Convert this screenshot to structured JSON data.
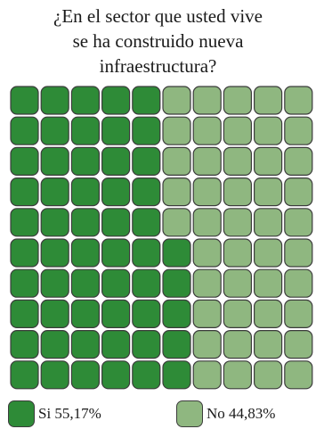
{
  "chart_data": {
    "type": "waffle",
    "title_lines": [
      "¿En el sector que usted vive",
      "se ha construido nueva",
      "infraestructura?"
    ],
    "grid": {
      "rows": 10,
      "cols": 10
    },
    "series": [
      {
        "name": "Si",
        "label": "Si 55,17%",
        "value": 55.17,
        "cells": 55,
        "color": "#2e8b37"
      },
      {
        "name": "No",
        "label": "No 44,83%",
        "value": 44.83,
        "cells": 45,
        "color": "#8fb780"
      }
    ],
    "fill_order": "column-major, left to right, bottom to top"
  }
}
